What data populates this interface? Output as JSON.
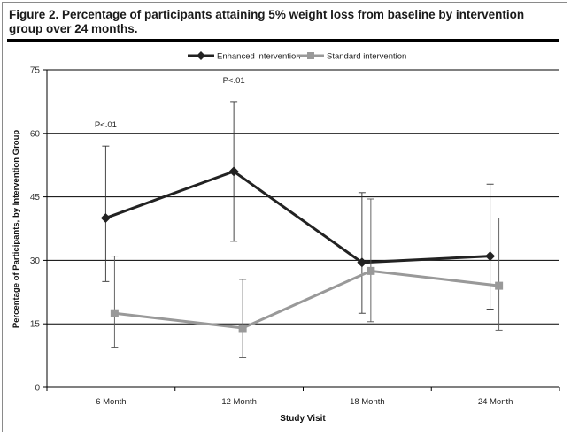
{
  "figure_title": "Figure 2. Percentage of participants attaining 5% weight loss from baseline by intervention group over 24 months.",
  "colors": {
    "enhanced": "#222222",
    "standard": "#999999",
    "grid": "#000000"
  },
  "chart_data": {
    "type": "line",
    "title": "Figure 2. Percentage of participants attaining 5% weight loss from baseline by intervention group over 24 months.",
    "xlabel": "Study Visit",
    "ylabel": "Percentage of Participants, by Intervention Group",
    "categories": [
      "6 Month",
      "12 Month",
      "18 Month",
      "24 Month"
    ],
    "ylim": [
      0,
      75
    ],
    "yticks": [
      0,
      15,
      30,
      45,
      60,
      75
    ],
    "grid": "horizontal",
    "legend_position": "top",
    "series": [
      {
        "name": "Enhanced intervention",
        "marker": "diamond",
        "values": [
          40,
          51,
          29.5,
          31
        ],
        "error_low": [
          25,
          34.5,
          17.5,
          18.5
        ],
        "error_high": [
          57,
          67.5,
          46,
          48
        ]
      },
      {
        "name": "Standard intervention",
        "marker": "square",
        "values": [
          17.5,
          14,
          27.5,
          24
        ],
        "error_low": [
          9.5,
          7,
          15.5,
          13.5
        ],
        "error_high": [
          31,
          25.5,
          44.5,
          40
        ]
      }
    ],
    "annotations": [
      {
        "text": "P<.01",
        "category": "6 Month"
      },
      {
        "text": "P<.01",
        "category": "12 Month"
      }
    ]
  }
}
